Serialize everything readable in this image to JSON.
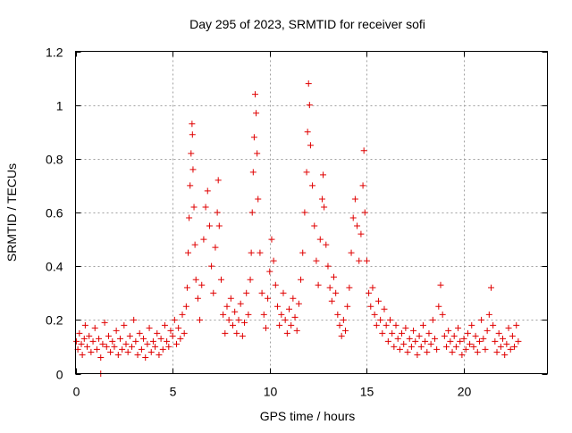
{
  "chart_data": {
    "type": "scatter",
    "title": "Day 295 of 2023, SRMTID for receiver sofi",
    "xlabel": "GPS time / hours",
    "ylabel": "SRMTID / TECUs",
    "xlim": [
      0,
      24.3
    ],
    "ylim": [
      0,
      1.2
    ],
    "x_ticks": [
      0,
      5,
      10,
      15,
      20
    ],
    "x_tick_labels": [
      "0",
      "5",
      "10",
      "15",
      "20"
    ],
    "y_ticks": [
      0,
      0.2,
      0.4,
      0.6,
      0.8,
      1,
      1.2
    ],
    "y_tick_labels": [
      "0",
      "0.2",
      "0.4",
      "0.6",
      "0.8",
      "1",
      "1.2"
    ],
    "grid": true,
    "marker": "plus",
    "color": "#e00000",
    "series": [
      {
        "name": "SRMTID",
        "points": [
          [
            0.05,
            0.12
          ],
          [
            0.12,
            0.09
          ],
          [
            0.2,
            0.15
          ],
          [
            0.3,
            0.11
          ],
          [
            0.35,
            0.07
          ],
          [
            0.45,
            0.13
          ],
          [
            0.5,
            0.18
          ],
          [
            0.6,
            0.1
          ],
          [
            0.7,
            0.14
          ],
          [
            0.8,
            0.08
          ],
          [
            0.9,
            0.12
          ],
          [
            1.0,
            0.17
          ],
          [
            1.1,
            0.09
          ],
          [
            1.2,
            0.13
          ],
          [
            1.3,
            0.06
          ],
          [
            1.4,
            0.11
          ],
          [
            1.5,
            0.19
          ],
          [
            1.6,
            0.1
          ],
          [
            1.7,
            0.14
          ],
          [
            1.8,
            0.08
          ],
          [
            1.9,
            0.12
          ],
          [
            2.0,
            0.1
          ],
          [
            2.1,
            0.16
          ],
          [
            2.2,
            0.07
          ],
          [
            2.3,
            0.13
          ],
          [
            2.4,
            0.09
          ],
          [
            2.5,
            0.18
          ],
          [
            2.6,
            0.11
          ],
          [
            2.7,
            0.08
          ],
          [
            2.8,
            0.14
          ],
          [
            2.9,
            0.1
          ],
          [
            3.0,
            0.2
          ],
          [
            3.1,
            0.12
          ],
          [
            3.2,
            0.07
          ],
          [
            3.3,
            0.15
          ],
          [
            3.4,
            0.09
          ],
          [
            3.5,
            0.13
          ],
          [
            3.6,
            0.06
          ],
          [
            3.7,
            0.11
          ],
          [
            3.8,
            0.17
          ],
          [
            3.9,
            0.08
          ],
          [
            4.0,
            0.12
          ],
          [
            4.1,
            0.1
          ],
          [
            4.2,
            0.15
          ],
          [
            4.3,
            0.07
          ],
          [
            4.4,
            0.13
          ],
          [
            4.5,
            0.09
          ],
          [
            4.6,
            0.18
          ],
          [
            4.7,
            0.12
          ],
          [
            4.8,
            0.1
          ],
          [
            4.9,
            0.16
          ],
          [
            5.0,
            0.14
          ],
          [
            5.1,
            0.2
          ],
          [
            5.2,
            0.11
          ],
          [
            5.3,
            0.17
          ],
          [
            5.4,
            0.13
          ],
          [
            5.5,
            0.22
          ],
          [
            5.6,
            0.15
          ],
          [
            5.7,
            0.25
          ],
          [
            5.75,
            0.32
          ],
          [
            5.8,
            0.45
          ],
          [
            5.85,
            0.58
          ],
          [
            5.9,
            0.7
          ],
          [
            5.95,
            0.82
          ],
          [
            6.0,
            0.93
          ],
          [
            6.02,
            0.89
          ],
          [
            6.05,
            0.76
          ],
          [
            6.1,
            0.62
          ],
          [
            6.15,
            0.48
          ],
          [
            6.2,
            0.35
          ],
          [
            6.3,
            0.28
          ],
          [
            6.4,
            0.2
          ],
          [
            6.5,
            0.33
          ],
          [
            6.6,
            0.5
          ],
          [
            6.7,
            0.62
          ],
          [
            6.8,
            0.68
          ],
          [
            6.9,
            0.55
          ],
          [
            7.0,
            0.4
          ],
          [
            7.1,
            0.3
          ],
          [
            7.2,
            0.47
          ],
          [
            7.3,
            0.6
          ],
          [
            7.35,
            0.72
          ],
          [
            7.4,
            0.55
          ],
          [
            7.5,
            0.35
          ],
          [
            7.6,
            0.22
          ],
          [
            7.7,
            0.15
          ],
          [
            7.8,
            0.25
          ],
          [
            7.9,
            0.2
          ],
          [
            8.0,
            0.28
          ],
          [
            8.1,
            0.18
          ],
          [
            8.2,
            0.23
          ],
          [
            8.3,
            0.15
          ],
          [
            8.4,
            0.2
          ],
          [
            8.5,
            0.26
          ],
          [
            8.6,
            0.14
          ],
          [
            8.7,
            0.19
          ],
          [
            8.8,
            0.3
          ],
          [
            8.9,
            0.22
          ],
          [
            9.0,
            0.35
          ],
          [
            9.05,
            0.45
          ],
          [
            9.1,
            0.6
          ],
          [
            9.15,
            0.75
          ],
          [
            9.2,
            0.88
          ],
          [
            9.25,
            1.04
          ],
          [
            9.3,
            0.97
          ],
          [
            9.35,
            0.82
          ],
          [
            9.4,
            0.65
          ],
          [
            9.5,
            0.45
          ],
          [
            9.6,
            0.3
          ],
          [
            9.7,
            0.22
          ],
          [
            9.8,
            0.17
          ],
          [
            9.9,
            0.28
          ],
          [
            10.0,
            0.38
          ],
          [
            10.1,
            0.5
          ],
          [
            10.2,
            0.42
          ],
          [
            10.3,
            0.33
          ],
          [
            10.4,
            0.25
          ],
          [
            10.5,
            0.18
          ],
          [
            10.6,
            0.22
          ],
          [
            10.7,
            0.3
          ],
          [
            10.8,
            0.2
          ],
          [
            10.9,
            0.15
          ],
          [
            11.0,
            0.24
          ],
          [
            11.1,
            0.18
          ],
          [
            11.2,
            0.28
          ],
          [
            11.3,
            0.21
          ],
          [
            11.4,
            0.16
          ],
          [
            11.5,
            0.26
          ],
          [
            11.6,
            0.35
          ],
          [
            11.7,
            0.45
          ],
          [
            11.8,
            0.6
          ],
          [
            11.9,
            0.75
          ],
          [
            11.95,
            0.9
          ],
          [
            12.0,
            1.08
          ],
          [
            12.05,
            1.0
          ],
          [
            12.1,
            0.85
          ],
          [
            12.2,
            0.7
          ],
          [
            12.3,
            0.55
          ],
          [
            12.4,
            0.42
          ],
          [
            12.5,
            0.33
          ],
          [
            12.6,
            0.5
          ],
          [
            12.7,
            0.65
          ],
          [
            12.75,
            0.74
          ],
          [
            12.8,
            0.62
          ],
          [
            12.9,
            0.48
          ],
          [
            13.0,
            0.4
          ],
          [
            13.1,
            0.32
          ],
          [
            13.2,
            0.27
          ],
          [
            13.3,
            0.36
          ],
          [
            13.4,
            0.3
          ],
          [
            13.5,
            0.22
          ],
          [
            13.6,
            0.18
          ],
          [
            13.7,
            0.14
          ],
          [
            13.8,
            0.2
          ],
          [
            13.9,
            0.16
          ],
          [
            14.0,
            0.25
          ],
          [
            14.1,
            0.32
          ],
          [
            14.2,
            0.45
          ],
          [
            14.3,
            0.58
          ],
          [
            14.4,
            0.65
          ],
          [
            14.5,
            0.55
          ],
          [
            14.6,
            0.42
          ],
          [
            14.7,
            0.52
          ],
          [
            14.8,
            0.7
          ],
          [
            14.85,
            0.83
          ],
          [
            14.9,
            0.6
          ],
          [
            15.0,
            0.42
          ],
          [
            15.1,
            0.3
          ],
          [
            15.2,
            0.25
          ],
          [
            15.3,
            0.32
          ],
          [
            15.4,
            0.22
          ],
          [
            15.5,
            0.18
          ],
          [
            15.6,
            0.27
          ],
          [
            15.7,
            0.2
          ],
          [
            15.8,
            0.15
          ],
          [
            15.9,
            0.24
          ],
          [
            16.0,
            0.18
          ],
          [
            16.1,
            0.12
          ],
          [
            16.2,
            0.2
          ],
          [
            16.3,
            0.15
          ],
          [
            16.4,
            0.1
          ],
          [
            16.5,
            0.18
          ],
          [
            16.6,
            0.13
          ],
          [
            16.7,
            0.09
          ],
          [
            16.8,
            0.15
          ],
          [
            16.9,
            0.11
          ],
          [
            17.0,
            0.17
          ],
          [
            17.1,
            0.08
          ],
          [
            17.2,
            0.13
          ],
          [
            17.3,
            0.1
          ],
          [
            17.4,
            0.16
          ],
          [
            17.5,
            0.12
          ],
          [
            17.6,
            0.07
          ],
          [
            17.7,
            0.14
          ],
          [
            17.8,
            0.1
          ],
          [
            17.9,
            0.18
          ],
          [
            18.0,
            0.12
          ],
          [
            18.1,
            0.08
          ],
          [
            18.2,
            0.15
          ],
          [
            18.3,
            0.11
          ],
          [
            18.4,
            0.2
          ],
          [
            18.5,
            0.13
          ],
          [
            18.6,
            0.09
          ],
          [
            18.7,
            0.25
          ],
          [
            18.8,
            0.33
          ],
          [
            18.9,
            0.22
          ],
          [
            19.0,
            0.14
          ],
          [
            19.1,
            0.1
          ],
          [
            19.2,
            0.16
          ],
          [
            19.3,
            0.12
          ],
          [
            19.4,
            0.08
          ],
          [
            19.5,
            0.14
          ],
          [
            19.6,
            0.1
          ],
          [
            19.7,
            0.17
          ],
          [
            19.8,
            0.12
          ],
          [
            19.9,
            0.07
          ],
          [
            20.0,
            0.13
          ],
          [
            20.1,
            0.09
          ],
          [
            20.2,
            0.15
          ],
          [
            20.3,
            0.11
          ],
          [
            20.4,
            0.18
          ],
          [
            20.5,
            0.1
          ],
          [
            20.6,
            0.14
          ],
          [
            20.7,
            0.08
          ],
          [
            20.8,
            0.12
          ],
          [
            20.9,
            0.2
          ],
          [
            21.0,
            0.13
          ],
          [
            21.1,
            0.09
          ],
          [
            21.2,
            0.16
          ],
          [
            21.3,
            0.22
          ],
          [
            21.4,
            0.32
          ],
          [
            21.5,
            0.18
          ],
          [
            21.6,
            0.12
          ],
          [
            21.7,
            0.08
          ],
          [
            21.8,
            0.15
          ],
          [
            21.9,
            0.1
          ],
          [
            22.0,
            0.13
          ],
          [
            22.1,
            0.07
          ],
          [
            22.2,
            0.11
          ],
          [
            22.3,
            0.17
          ],
          [
            22.4,
            0.09
          ],
          [
            22.5,
            0.14
          ],
          [
            22.6,
            0.1
          ],
          [
            22.7,
            0.18
          ],
          [
            22.8,
            0.12
          ],
          [
            1.3,
            0.0
          ]
        ]
      }
    ]
  }
}
